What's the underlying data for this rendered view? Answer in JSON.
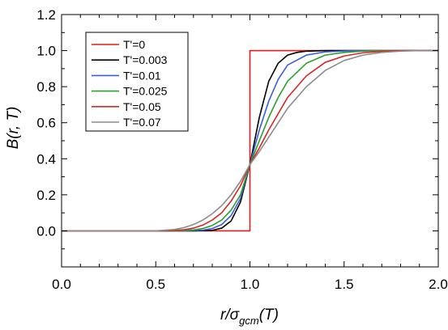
{
  "chart_data": {
    "type": "line",
    "xlabel": {
      "base": "r/",
      "sigma": "σ",
      "sub": "gcm",
      "suffix": "(T)"
    },
    "ylabel": "B(r, T)",
    "xlim": [
      0.0,
      2.0
    ],
    "ylim": [
      -0.2,
      1.2
    ],
    "x_ticks": [
      0.0,
      0.5,
      1.0,
      1.5,
      2.0
    ],
    "x_tick_labels": [
      "0.0",
      "0.5",
      "1.0",
      "1.5",
      "2.0"
    ],
    "y_ticks": [
      0.0,
      0.2,
      0.4,
      0.6,
      0.8,
      1.0,
      1.2
    ],
    "y_tick_labels": [
      "0.0",
      "0.2",
      "0.4",
      "0.6",
      "0.8",
      "1.0",
      "1.2"
    ],
    "grid": false,
    "legend_position": "top-left",
    "crossing_point": [
      1.0,
      0.368
    ],
    "series": [
      {
        "name": "T'=0",
        "color": "#e41a1c",
        "x": [
          0.0,
          1.0,
          1.0,
          2.0
        ],
        "y": [
          0.0,
          0.0,
          1.0,
          1.0
        ]
      },
      {
        "name": "T'=0.003",
        "color": "#000000",
        "x": [
          0.0,
          0.7,
          0.8,
          0.85,
          0.9,
          0.95,
          1.0,
          1.05,
          1.1,
          1.15,
          1.2,
          1.25,
          1.3,
          1.4,
          1.5,
          2.0
        ],
        "y": [
          0.0,
          0.0,
          0.003,
          0.015,
          0.055,
          0.16,
          0.368,
          0.63,
          0.83,
          0.93,
          0.975,
          0.99,
          0.997,
          1.0,
          1.0,
          1.0
        ]
      },
      {
        "name": "T'=0.01",
        "color": "#3a5fd9",
        "x": [
          0.0,
          0.65,
          0.75,
          0.8,
          0.85,
          0.9,
          0.95,
          1.0,
          1.05,
          1.1,
          1.15,
          1.2,
          1.3,
          1.4,
          1.5,
          1.6,
          2.0
        ],
        "y": [
          0.0,
          0.0,
          0.004,
          0.013,
          0.035,
          0.085,
          0.18,
          0.368,
          0.56,
          0.72,
          0.84,
          0.92,
          0.975,
          0.993,
          0.998,
          1.0,
          1.0
        ]
      },
      {
        "name": "T'=0.025",
        "color": "#2ca02c",
        "x": [
          0.0,
          0.6,
          0.7,
          0.75,
          0.8,
          0.85,
          0.9,
          0.95,
          1.0,
          1.05,
          1.1,
          1.15,
          1.2,
          1.3,
          1.4,
          1.5,
          1.6,
          1.7,
          2.0
        ],
        "y": [
          0.0,
          0.0,
          0.005,
          0.013,
          0.03,
          0.06,
          0.115,
          0.2,
          0.368,
          0.5,
          0.63,
          0.74,
          0.83,
          0.93,
          0.975,
          0.99,
          0.997,
          1.0,
          1.0
        ]
      },
      {
        "name": "T'=0.05",
        "color": "#d62728",
        "x": [
          0.0,
          0.55,
          0.65,
          0.7,
          0.75,
          0.8,
          0.85,
          0.9,
          0.95,
          1.0,
          1.05,
          1.1,
          1.2,
          1.3,
          1.4,
          1.5,
          1.6,
          1.7,
          1.8,
          2.0
        ],
        "y": [
          0.0,
          0.0,
          0.006,
          0.015,
          0.032,
          0.06,
          0.1,
          0.165,
          0.25,
          0.368,
          0.46,
          0.56,
          0.74,
          0.86,
          0.935,
          0.97,
          0.988,
          0.996,
          1.0,
          1.0
        ]
      },
      {
        "name": "T'=0.07",
        "color": "#8c8c8c",
        "x": [
          0.0,
          0.5,
          0.6,
          0.65,
          0.7,
          0.75,
          0.8,
          0.85,
          0.9,
          0.95,
          1.0,
          1.05,
          1.1,
          1.2,
          1.3,
          1.4,
          1.5,
          1.6,
          1.7,
          1.8,
          1.9,
          2.0
        ],
        "y": [
          0.0,
          0.0,
          0.008,
          0.018,
          0.035,
          0.06,
          0.095,
          0.14,
          0.2,
          0.275,
          0.368,
          0.44,
          0.52,
          0.68,
          0.8,
          0.89,
          0.945,
          0.975,
          0.99,
          0.997,
          1.0,
          1.0
        ]
      }
    ]
  }
}
